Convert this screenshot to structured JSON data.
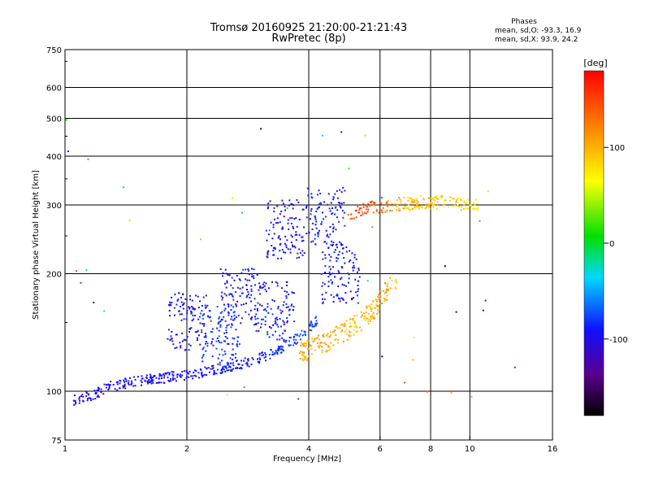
{
  "chart_data": {
    "type": "scatter",
    "title": "Tromsø 20160925 21:20:00-21:21:43",
    "subtitle": "RwPretec (8p)",
    "xlabel": "Frequency [MHz]",
    "ylabel": "Stationary phase Virtual Height [km]",
    "x_scale": "log",
    "y_scale": "log",
    "xlim": [
      1,
      16
    ],
    "ylim": [
      75,
      750
    ],
    "xticks": [
      "1",
      "2",
      "4",
      "6",
      "8",
      "10",
      "16"
    ],
    "yticks": [
      "75",
      "100",
      "200",
      "300",
      "400",
      "500",
      "600",
      "750"
    ],
    "grid": true,
    "phases": {
      "header": "Phases",
      "o_line": "mean, sd,O: -93.3, 16.9",
      "x_line": "mean, sd,X:  93.9, 24.2"
    },
    "colorbar": {
      "label": "[deg]",
      "range": [
        -180,
        180
      ],
      "ticks": [
        "100",
        "0",
        "-100"
      ]
    },
    "o_trace": [
      {
        "x": 1.05,
        "y": 95,
        "phase": -105
      },
      {
        "x": 1.15,
        "y": 97,
        "phase": -100
      },
      {
        "x": 1.3,
        "y": 103,
        "phase": -98
      },
      {
        "x": 1.5,
        "y": 106,
        "phase": -95
      },
      {
        "x": 1.7,
        "y": 108,
        "phase": -95
      },
      {
        "x": 2.0,
        "y": 110,
        "phase": -92
      },
      {
        "x": 2.3,
        "y": 113,
        "phase": -90
      },
      {
        "x": 2.7,
        "y": 117,
        "phase": -88
      },
      {
        "x": 3.0,
        "y": 121,
        "phase": -85
      },
      {
        "x": 3.4,
        "y": 128,
        "phase": -80
      },
      {
        "x": 3.8,
        "y": 138,
        "phase": -75
      },
      {
        "x": 4.2,
        "y": 152,
        "phase": -78
      }
    ],
    "x_trace": [
      {
        "x": 3.8,
        "y": 125,
        "phase": 100
      },
      {
        "x": 4.3,
        "y": 132,
        "phase": 105
      },
      {
        "x": 4.8,
        "y": 140,
        "phase": 100
      },
      {
        "x": 5.3,
        "y": 150,
        "phase": 95
      },
      {
        "x": 5.8,
        "y": 162,
        "phase": 100
      },
      {
        "x": 6.2,
        "y": 180,
        "phase": 105
      },
      {
        "x": 6.6,
        "y": 195,
        "phase": 95
      }
    ],
    "f_region": [
      {
        "x": 5.0,
        "y": 285,
        "phase": 145
      },
      {
        "x": 5.4,
        "y": 292,
        "phase": 150
      },
      {
        "x": 5.8,
        "y": 298,
        "phase": 140
      },
      {
        "x": 6.5,
        "y": 300,
        "phase": 100
      },
      {
        "x": 7.5,
        "y": 305,
        "phase": 95
      },
      {
        "x": 8.5,
        "y": 305,
        "phase": 90
      },
      {
        "x": 9.5,
        "y": 303,
        "phase": 80
      },
      {
        "x": 10.5,
        "y": 302,
        "phase": 60
      }
    ],
    "spread_clusters": [
      {
        "x": 2.0,
        "y": 150,
        "phase": -95
      },
      {
        "x": 2.4,
        "y": 140,
        "phase": -80
      },
      {
        "x": 2.7,
        "y": 175,
        "phase": -90
      },
      {
        "x": 3.3,
        "y": 160,
        "phase": -90
      },
      {
        "x": 3.5,
        "y": 260,
        "phase": -95
      },
      {
        "x": 4.4,
        "y": 280,
        "phase": -90
      },
      {
        "x": 4.8,
        "y": 200,
        "phase": -90
      }
    ]
  }
}
